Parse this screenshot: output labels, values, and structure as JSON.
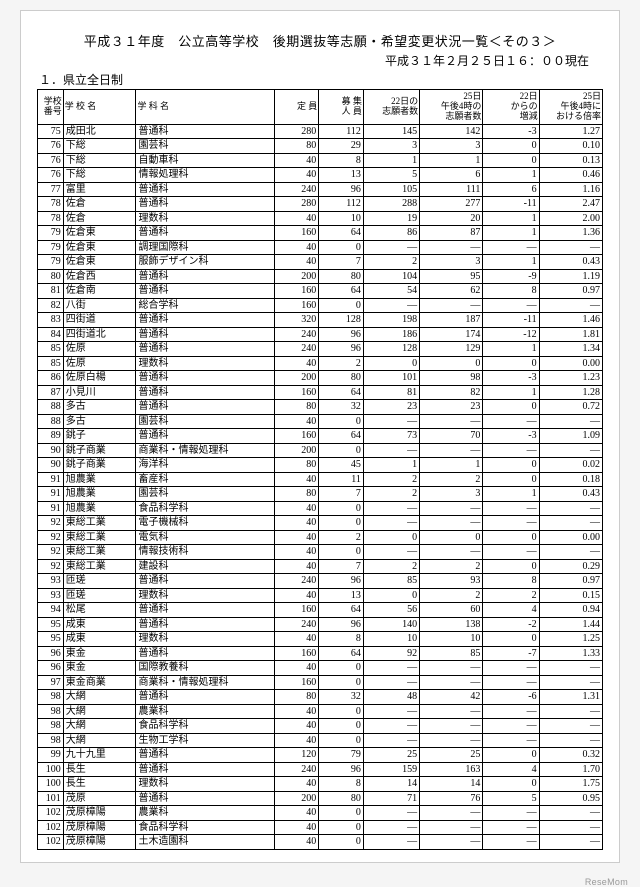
{
  "title": "平成３１年度　公立高等学校　後期選抜等志願・希望変更状況一覧＜その３＞",
  "timestamp": "平成３１年２月２５日１６：００現在",
  "section": "１．県立全日制",
  "watermark": "ReseMom",
  "headers": {
    "num": "学校\n番号",
    "school": "学 校 名",
    "dept": "学 科 名",
    "cap": "定 員",
    "rec": "募 集\n人 員",
    "app22": "22日の\n志願者数",
    "app25": "25日\n午後4時の\n志願者数",
    "diff": "22日\nからの\n増減",
    "rate": "25日\n午後4時に\nおける倍率"
  },
  "rows": [
    {
      "n": "75",
      "s": "成田北",
      "d": "普通科",
      "c": "280",
      "r": "112",
      "a22": "145",
      "a25": "142",
      "df": "-3",
      "rt": "1.27"
    },
    {
      "n": "76",
      "s": "下総",
      "d": "園芸科",
      "c": "80",
      "r": "29",
      "a22": "3",
      "a25": "3",
      "df": "0",
      "rt": "0.10"
    },
    {
      "n": "76",
      "s": "下総",
      "d": "自動車科",
      "c": "40",
      "r": "8",
      "a22": "1",
      "a25": "1",
      "df": "0",
      "rt": "0.13"
    },
    {
      "n": "76",
      "s": "下総",
      "d": "情報処理科",
      "c": "40",
      "r": "13",
      "a22": "5",
      "a25": "6",
      "df": "1",
      "rt": "0.46"
    },
    {
      "n": "77",
      "s": "富里",
      "d": "普通科",
      "c": "240",
      "r": "96",
      "a22": "105",
      "a25": "111",
      "df": "6",
      "rt": "1.16"
    },
    {
      "n": "78",
      "s": "佐倉",
      "d": "普通科",
      "c": "280",
      "r": "112",
      "a22": "288",
      "a25": "277",
      "df": "-11",
      "rt": "2.47"
    },
    {
      "n": "78",
      "s": "佐倉",
      "d": "理数科",
      "c": "40",
      "r": "10",
      "a22": "19",
      "a25": "20",
      "df": "1",
      "rt": "2.00"
    },
    {
      "n": "79",
      "s": "佐倉東",
      "d": "普通科",
      "c": "160",
      "r": "64",
      "a22": "86",
      "a25": "87",
      "df": "1",
      "rt": "1.36"
    },
    {
      "n": "79",
      "s": "佐倉東",
      "d": "調理国際科",
      "c": "40",
      "r": "0",
      "a22": "—",
      "a25": "—",
      "df": "—",
      "rt": "—"
    },
    {
      "n": "79",
      "s": "佐倉東",
      "d": "服飾デザイン科",
      "c": "40",
      "r": "7",
      "a22": "2",
      "a25": "3",
      "df": "1",
      "rt": "0.43"
    },
    {
      "n": "80",
      "s": "佐倉西",
      "d": "普通科",
      "c": "200",
      "r": "80",
      "a22": "104",
      "a25": "95",
      "df": "-9",
      "rt": "1.19"
    },
    {
      "n": "81",
      "s": "佐倉南",
      "d": "普通科",
      "c": "160",
      "r": "64",
      "a22": "54",
      "a25": "62",
      "df": "8",
      "rt": "0.97"
    },
    {
      "n": "82",
      "s": "八街",
      "d": "総合学科",
      "c": "160",
      "r": "0",
      "a22": "—",
      "a25": "—",
      "df": "—",
      "rt": "—"
    },
    {
      "n": "83",
      "s": "四街道",
      "d": "普通科",
      "c": "320",
      "r": "128",
      "a22": "198",
      "a25": "187",
      "df": "-11",
      "rt": "1.46"
    },
    {
      "n": "84",
      "s": "四街道北",
      "d": "普通科",
      "c": "240",
      "r": "96",
      "a22": "186",
      "a25": "174",
      "df": "-12",
      "rt": "1.81"
    },
    {
      "n": "85",
      "s": "佐原",
      "d": "普通科",
      "c": "240",
      "r": "96",
      "a22": "128",
      "a25": "129",
      "df": "1",
      "rt": "1.34"
    },
    {
      "n": "85",
      "s": "佐原",
      "d": "理数科",
      "c": "40",
      "r": "2",
      "a22": "0",
      "a25": "0",
      "df": "0",
      "rt": "0.00"
    },
    {
      "n": "86",
      "s": "佐原白楊",
      "d": "普通科",
      "c": "200",
      "r": "80",
      "a22": "101",
      "a25": "98",
      "df": "-3",
      "rt": "1.23"
    },
    {
      "n": "87",
      "s": "小見川",
      "d": "普通科",
      "c": "160",
      "r": "64",
      "a22": "81",
      "a25": "82",
      "df": "1",
      "rt": "1.28"
    },
    {
      "n": "88",
      "s": "多古",
      "d": "普通科",
      "c": "80",
      "r": "32",
      "a22": "23",
      "a25": "23",
      "df": "0",
      "rt": "0.72"
    },
    {
      "n": "88",
      "s": "多古",
      "d": "園芸科",
      "c": "40",
      "r": "0",
      "a22": "—",
      "a25": "—",
      "df": "—",
      "rt": "—"
    },
    {
      "n": "89",
      "s": "銚子",
      "d": "普通科",
      "c": "160",
      "r": "64",
      "a22": "73",
      "a25": "70",
      "df": "-3",
      "rt": "1.09"
    },
    {
      "n": "90",
      "s": "銚子商業",
      "d": "商業科・情報処理科",
      "c": "200",
      "r": "0",
      "a22": "—",
      "a25": "—",
      "df": "—",
      "rt": "—"
    },
    {
      "n": "90",
      "s": "銚子商業",
      "d": "海洋科",
      "c": "80",
      "r": "45",
      "a22": "1",
      "a25": "1",
      "df": "0",
      "rt": "0.02"
    },
    {
      "n": "91",
      "s": "旭農業",
      "d": "畜産科",
      "c": "40",
      "r": "11",
      "a22": "2",
      "a25": "2",
      "df": "0",
      "rt": "0.18"
    },
    {
      "n": "91",
      "s": "旭農業",
      "d": "園芸科",
      "c": "80",
      "r": "7",
      "a22": "2",
      "a25": "3",
      "df": "1",
      "rt": "0.43"
    },
    {
      "n": "91",
      "s": "旭農業",
      "d": "食品科学科",
      "c": "40",
      "r": "0",
      "a22": "—",
      "a25": "—",
      "df": "—",
      "rt": "—"
    },
    {
      "n": "92",
      "s": "東総工業",
      "d": "電子機械科",
      "c": "40",
      "r": "0",
      "a22": "—",
      "a25": "—",
      "df": "—",
      "rt": "—"
    },
    {
      "n": "92",
      "s": "東総工業",
      "d": "電気科",
      "c": "40",
      "r": "2",
      "a22": "0",
      "a25": "0",
      "df": "0",
      "rt": "0.00"
    },
    {
      "n": "92",
      "s": "東総工業",
      "d": "情報技術科",
      "c": "40",
      "r": "0",
      "a22": "—",
      "a25": "—",
      "df": "—",
      "rt": "—"
    },
    {
      "n": "92",
      "s": "東総工業",
      "d": "建設科",
      "c": "40",
      "r": "7",
      "a22": "2",
      "a25": "2",
      "df": "0",
      "rt": "0.29"
    },
    {
      "n": "93",
      "s": "匝瑳",
      "d": "普通科",
      "c": "240",
      "r": "96",
      "a22": "85",
      "a25": "93",
      "df": "8",
      "rt": "0.97"
    },
    {
      "n": "93",
      "s": "匝瑳",
      "d": "理数科",
      "c": "40",
      "r": "13",
      "a22": "0",
      "a25": "2",
      "df": "2",
      "rt": "0.15"
    },
    {
      "n": "94",
      "s": "松尾",
      "d": "普通科",
      "c": "160",
      "r": "64",
      "a22": "56",
      "a25": "60",
      "df": "4",
      "rt": "0.94"
    },
    {
      "n": "95",
      "s": "成東",
      "d": "普通科",
      "c": "240",
      "r": "96",
      "a22": "140",
      "a25": "138",
      "df": "-2",
      "rt": "1.44"
    },
    {
      "n": "95",
      "s": "成東",
      "d": "理数科",
      "c": "40",
      "r": "8",
      "a22": "10",
      "a25": "10",
      "df": "0",
      "rt": "1.25"
    },
    {
      "n": "96",
      "s": "東金",
      "d": "普通科",
      "c": "160",
      "r": "64",
      "a22": "92",
      "a25": "85",
      "df": "-7",
      "rt": "1.33"
    },
    {
      "n": "96",
      "s": "東金",
      "d": "国際教養科",
      "c": "40",
      "r": "0",
      "a22": "—",
      "a25": "—",
      "df": "—",
      "rt": "—"
    },
    {
      "n": "97",
      "s": "東金商業",
      "d": "商業科・情報処理科",
      "c": "160",
      "r": "0",
      "a22": "—",
      "a25": "—",
      "df": "—",
      "rt": "—"
    },
    {
      "n": "98",
      "s": "大網",
      "d": "普通科",
      "c": "80",
      "r": "32",
      "a22": "48",
      "a25": "42",
      "df": "-6",
      "rt": "1.31"
    },
    {
      "n": "98",
      "s": "大網",
      "d": "農業科",
      "c": "40",
      "r": "0",
      "a22": "—",
      "a25": "—",
      "df": "—",
      "rt": "—"
    },
    {
      "n": "98",
      "s": "大網",
      "d": "食品科学科",
      "c": "40",
      "r": "0",
      "a22": "—",
      "a25": "—",
      "df": "—",
      "rt": "—"
    },
    {
      "n": "98",
      "s": "大網",
      "d": "生物工学科",
      "c": "40",
      "r": "0",
      "a22": "—",
      "a25": "—",
      "df": "—",
      "rt": "—"
    },
    {
      "n": "99",
      "s": "九十九里",
      "d": "普通科",
      "c": "120",
      "r": "79",
      "a22": "25",
      "a25": "25",
      "df": "0",
      "rt": "0.32"
    },
    {
      "n": "100",
      "s": "長生",
      "d": "普通科",
      "c": "240",
      "r": "96",
      "a22": "159",
      "a25": "163",
      "df": "4",
      "rt": "1.70"
    },
    {
      "n": "100",
      "s": "長生",
      "d": "理数科",
      "c": "40",
      "r": "8",
      "a22": "14",
      "a25": "14",
      "df": "0",
      "rt": "1.75"
    },
    {
      "n": "101",
      "s": "茂原",
      "d": "普通科",
      "c": "200",
      "r": "80",
      "a22": "71",
      "a25": "76",
      "df": "5",
      "rt": "0.95"
    },
    {
      "n": "102",
      "s": "茂原樟陽",
      "d": "農業科",
      "c": "40",
      "r": "0",
      "a22": "—",
      "a25": "—",
      "df": "—",
      "rt": "—"
    },
    {
      "n": "102",
      "s": "茂原樟陽",
      "d": "食品科学科",
      "c": "40",
      "r": "0",
      "a22": "—",
      "a25": "—",
      "df": "—",
      "rt": "—"
    },
    {
      "n": "102",
      "s": "茂原樟陽",
      "d": "土木造園科",
      "c": "40",
      "r": "0",
      "a22": "—",
      "a25": "—",
      "df": "—",
      "rt": "—"
    }
  ]
}
